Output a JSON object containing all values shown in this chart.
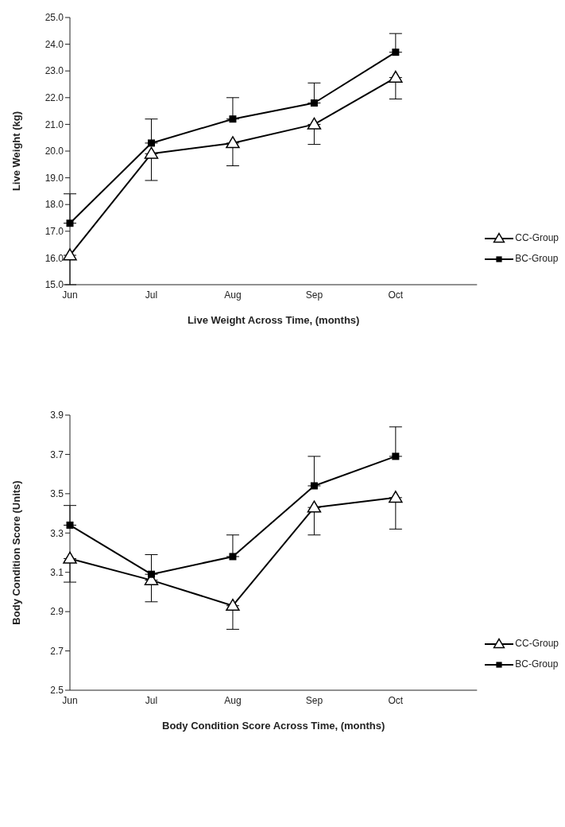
{
  "chart_data": [
    {
      "type": "line",
      "categories": [
        "Jun",
        "Jul",
        "Aug",
        "Sep",
        "Oct",
        null
      ],
      "xlabel": "Live Weight Across Time, (months)",
      "ylabel": "Live Weight (kg)",
      "ylim": [
        15,
        25
      ],
      "yticks": [
        {
          "value": 15,
          "label": "15.0"
        },
        {
          "value": 16,
          "label": "16.0"
        },
        {
          "value": 17,
          "label": "17.0"
        },
        {
          "value": 18,
          "label": "18.0"
        },
        {
          "value": 19,
          "label": "19.0"
        },
        {
          "value": 20,
          "label": "20.0"
        },
        {
          "value": 21,
          "label": "21.0"
        },
        {
          "value": 22,
          "label": "22.0"
        },
        {
          "value": 23,
          "label": "23.0"
        },
        {
          "value": 24,
          "label": "24.0"
        },
        {
          "value": 25,
          "label": "25.0"
        }
      ],
      "grid": false,
      "legend": "bottom right",
      "series": [
        {
          "name": "CC-Group",
          "color": "#000000",
          "marker": "triangle",
          "values": [
            16.1,
            19.9,
            20.3,
            21.0,
            22.75,
            null
          ],
          "errors": [
            [
              15.0,
              16.1
            ],
            [
              18.9,
              19.9
            ],
            [
              19.45,
              20.3
            ],
            [
              20.25,
              21.0
            ],
            [
              21.95,
              22.75
            ],
            null
          ]
        },
        {
          "name": "BC-Group",
          "color": "#000000",
          "marker": "square",
          "values": [
            17.3,
            20.3,
            21.2,
            21.8,
            23.7,
            null
          ],
          "errors": [
            [
              17.3,
              18.4
            ],
            [
              20.3,
              21.2
            ],
            [
              21.2,
              22.0
            ],
            [
              21.8,
              22.55
            ],
            [
              23.7,
              24.4
            ],
            null
          ]
        }
      ]
    },
    {
      "type": "line",
      "categories": [
        "Jun",
        "Jul",
        "Aug",
        "Sep",
        "Oct",
        null
      ],
      "xlabel": "Body Condition Score Across Time, (months)",
      "ylabel": "Body Condition Score (Units)",
      "ylim": [
        2.5,
        3.9
      ],
      "yticks": [
        2.5,
        2.7,
        2.9,
        3.1,
        3.3,
        3.5,
        3.7,
        3.9
      ],
      "grid": false,
      "legend": "bottom right",
      "series": [
        {
          "name": "CC-Group",
          "color": "#000000",
          "marker": "triangle",
          "values": [
            3.17,
            3.06,
            2.93,
            3.43,
            3.48,
            null
          ],
          "errors": [
            [
              3.05,
              3.17
            ],
            [
              2.95,
              3.06
            ],
            [
              2.81,
              2.93
            ],
            [
              3.29,
              3.43
            ],
            [
              3.32,
              3.48
            ],
            null
          ]
        },
        {
          "name": "BC-Group",
          "color": "#000000",
          "marker": "square",
          "values": [
            3.34,
            3.09,
            3.18,
            3.54,
            3.69,
            null
          ],
          "errors": [
            [
              3.34,
              3.44
            ],
            [
              3.09,
              3.19
            ],
            [
              3.18,
              3.29
            ],
            [
              3.54,
              3.69
            ],
            [
              3.69,
              3.84
            ],
            null
          ]
        }
      ]
    }
  ]
}
